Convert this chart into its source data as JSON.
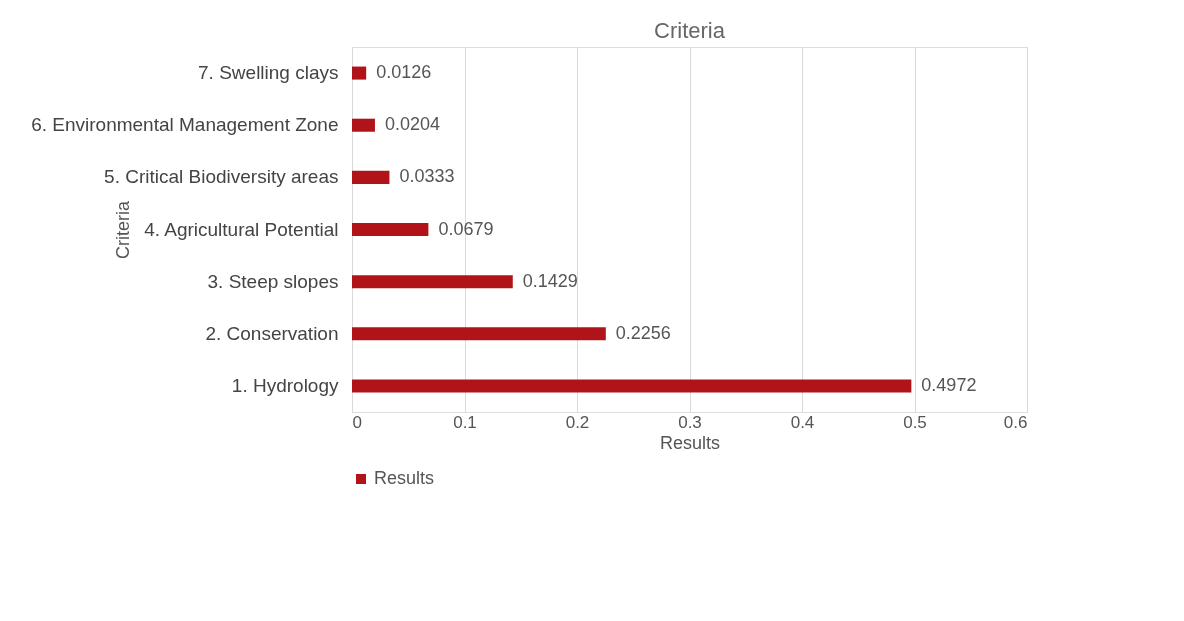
{
  "chart_data": {
    "type": "bar",
    "orientation": "horizontal",
    "title": "Criteria",
    "xlabel": "Results",
    "ylabel": "Criteria",
    "categories": [
      "7. Swelling clays",
      "6. Environmental Management Zone",
      "5. Critical Biodiversity areas",
      "4. Agricultural Potential",
      "3. Steep slopes",
      "2. Conservation",
      "1. Hydrology"
    ],
    "series": [
      {
        "name": "Results",
        "color": "#b01418",
        "values": [
          0.0126,
          0.0204,
          0.0333,
          0.0679,
          0.1429,
          0.2256,
          0.4972
        ]
      }
    ],
    "xlim": [
      0,
      0.6
    ],
    "xticks": [
      0,
      0.1,
      0.2,
      0.3,
      0.4,
      0.5,
      0.6
    ],
    "grid": "x",
    "legend": "bottom",
    "data_labels": true
  }
}
